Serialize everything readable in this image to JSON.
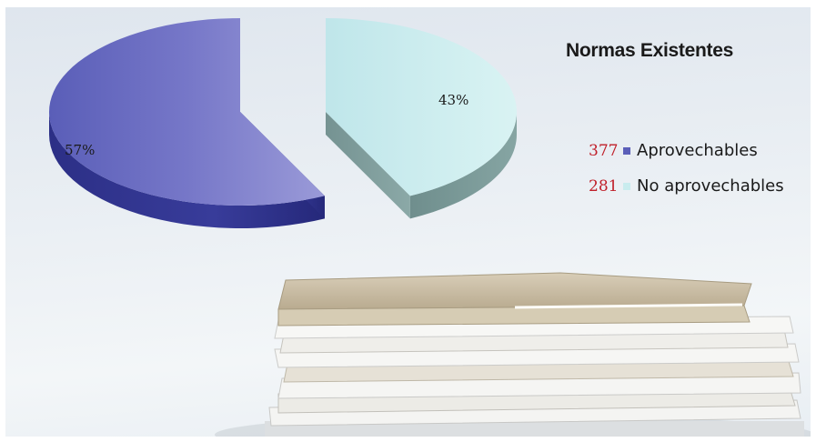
{
  "chart_data": {
    "type": "pie",
    "title": "Normas Existentes",
    "slices": [
      {
        "label": "Aprovechables",
        "value": 377,
        "percent_label": "57%",
        "color": "#5b5fb9"
      },
      {
        "label": "No aprovechables",
        "value": 281,
        "percent_label": "43%",
        "color": "#c9ecee"
      }
    ],
    "legend_position": "right",
    "style": "3d-exploded"
  }
}
